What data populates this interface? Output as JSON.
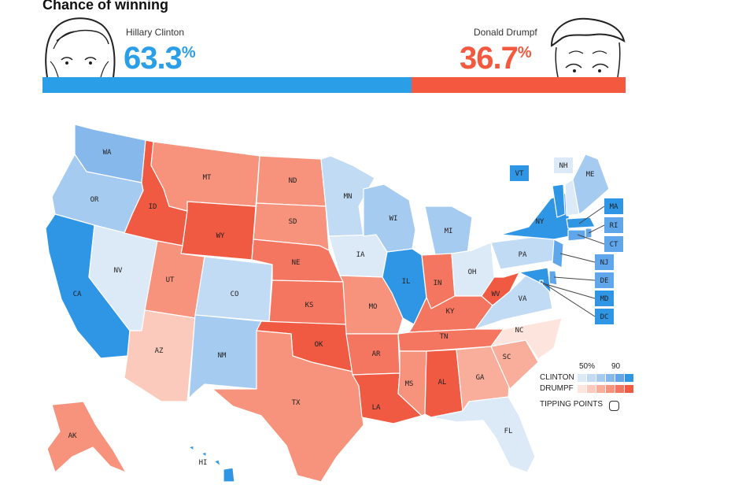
{
  "title": "Chance of winning",
  "candidates": {
    "left": {
      "name": "Hillary Clinton",
      "pct": "63.3",
      "pct_sign": "%",
      "color": "#2a9ee6"
    },
    "right": {
      "name": "Donald Drumpf",
      "pct": "36.7",
      "pct_sign": "%",
      "color": "#f4593f"
    }
  },
  "bar": {
    "left_share": 0.633,
    "right_share": 0.367
  },
  "legend": {
    "tick_low": "50%",
    "tick_high": "90",
    "clinton_label": "CLINTON",
    "drumpf_label": "DRUMPF",
    "tipping_label": "TIPPING POINTS",
    "clinton_colors": [
      "#dceaf8",
      "#c2dbf4",
      "#a6cbf0",
      "#86b8ec",
      "#5fa6ea",
      "#2f95e5"
    ],
    "drumpf_colors": [
      "#fde4dc",
      "#fbcabc",
      "#f9ae9b",
      "#f7937d",
      "#f57660",
      "#f05a42"
    ]
  },
  "chart_data": {
    "type": "map",
    "title": "Chance of winning",
    "states": [
      {
        "state": "WA",
        "party": "clinton",
        "level": 4
      },
      {
        "state": "OR",
        "party": "clinton",
        "level": 3
      },
      {
        "state": "CA",
        "party": "clinton",
        "level": 6
      },
      {
        "state": "NV",
        "party": "clinton",
        "level": 1
      },
      {
        "state": "ID",
        "party": "drumpf",
        "level": 6
      },
      {
        "state": "MT",
        "party": "drumpf",
        "level": 4
      },
      {
        "state": "WY",
        "party": "drumpf",
        "level": 6
      },
      {
        "state": "UT",
        "party": "drumpf",
        "level": 4
      },
      {
        "state": "AZ",
        "party": "drumpf",
        "level": 2
      },
      {
        "state": "CO",
        "party": "clinton",
        "level": 2
      },
      {
        "state": "NM",
        "party": "clinton",
        "level": 3
      },
      {
        "state": "ND",
        "party": "drumpf",
        "level": 4
      },
      {
        "state": "SD",
        "party": "drumpf",
        "level": 4
      },
      {
        "state": "NE",
        "party": "drumpf",
        "level": 5
      },
      {
        "state": "KS",
        "party": "drumpf",
        "level": 5
      },
      {
        "state": "OK",
        "party": "drumpf",
        "level": 6
      },
      {
        "state": "TX",
        "party": "drumpf",
        "level": 4
      },
      {
        "state": "MN",
        "party": "clinton",
        "level": 2
      },
      {
        "state": "IA",
        "party": "clinton",
        "level": 1
      },
      {
        "state": "MO",
        "party": "drumpf",
        "level": 4
      },
      {
        "state": "AR",
        "party": "drumpf",
        "level": 5
      },
      {
        "state": "LA",
        "party": "drumpf",
        "level": 6
      },
      {
        "state": "WI",
        "party": "clinton",
        "level": 3
      },
      {
        "state": "IL",
        "party": "clinton",
        "level": 6
      },
      {
        "state": "MI",
        "party": "clinton",
        "level": 3
      },
      {
        "state": "IN",
        "party": "drumpf",
        "level": 5
      },
      {
        "state": "OH",
        "party": "clinton",
        "level": 1
      },
      {
        "state": "KY",
        "party": "drumpf",
        "level": 5
      },
      {
        "state": "TN",
        "party": "drumpf",
        "level": 5
      },
      {
        "state": "MS",
        "party": "drumpf",
        "level": 4
      },
      {
        "state": "AL",
        "party": "drumpf",
        "level": 6
      },
      {
        "state": "GA",
        "party": "drumpf",
        "level": 3
      },
      {
        "state": "FL",
        "party": "clinton",
        "level": 1
      },
      {
        "state": "SC",
        "party": "drumpf",
        "level": 3
      },
      {
        "state": "NC",
        "party": "drumpf",
        "level": 1
      },
      {
        "state": "VA",
        "party": "clinton",
        "level": 2
      },
      {
        "state": "WV",
        "party": "drumpf",
        "level": 6
      },
      {
        "state": "PA",
        "party": "clinton",
        "level": 2
      },
      {
        "state": "NY",
        "party": "clinton",
        "level": 6
      },
      {
        "state": "VT",
        "party": "clinton",
        "level": 6
      },
      {
        "state": "NH",
        "party": "clinton",
        "level": 1
      },
      {
        "state": "ME",
        "party": "clinton",
        "level": 3
      },
      {
        "state": "MA",
        "party": "clinton",
        "level": 6
      },
      {
        "state": "RI",
        "party": "clinton",
        "level": 5
      },
      {
        "state": "CT",
        "party": "clinton",
        "level": 5
      },
      {
        "state": "NJ",
        "party": "clinton",
        "level": 5
      },
      {
        "state": "DE",
        "party": "clinton",
        "level": 5
      },
      {
        "state": "MD",
        "party": "clinton",
        "level": 6
      },
      {
        "state": "DC",
        "party": "clinton",
        "level": 6
      },
      {
        "state": "AK",
        "party": "drumpf",
        "level": 4
      },
      {
        "state": "HI",
        "party": "clinton",
        "level": 6
      }
    ],
    "tipping_points": []
  }
}
